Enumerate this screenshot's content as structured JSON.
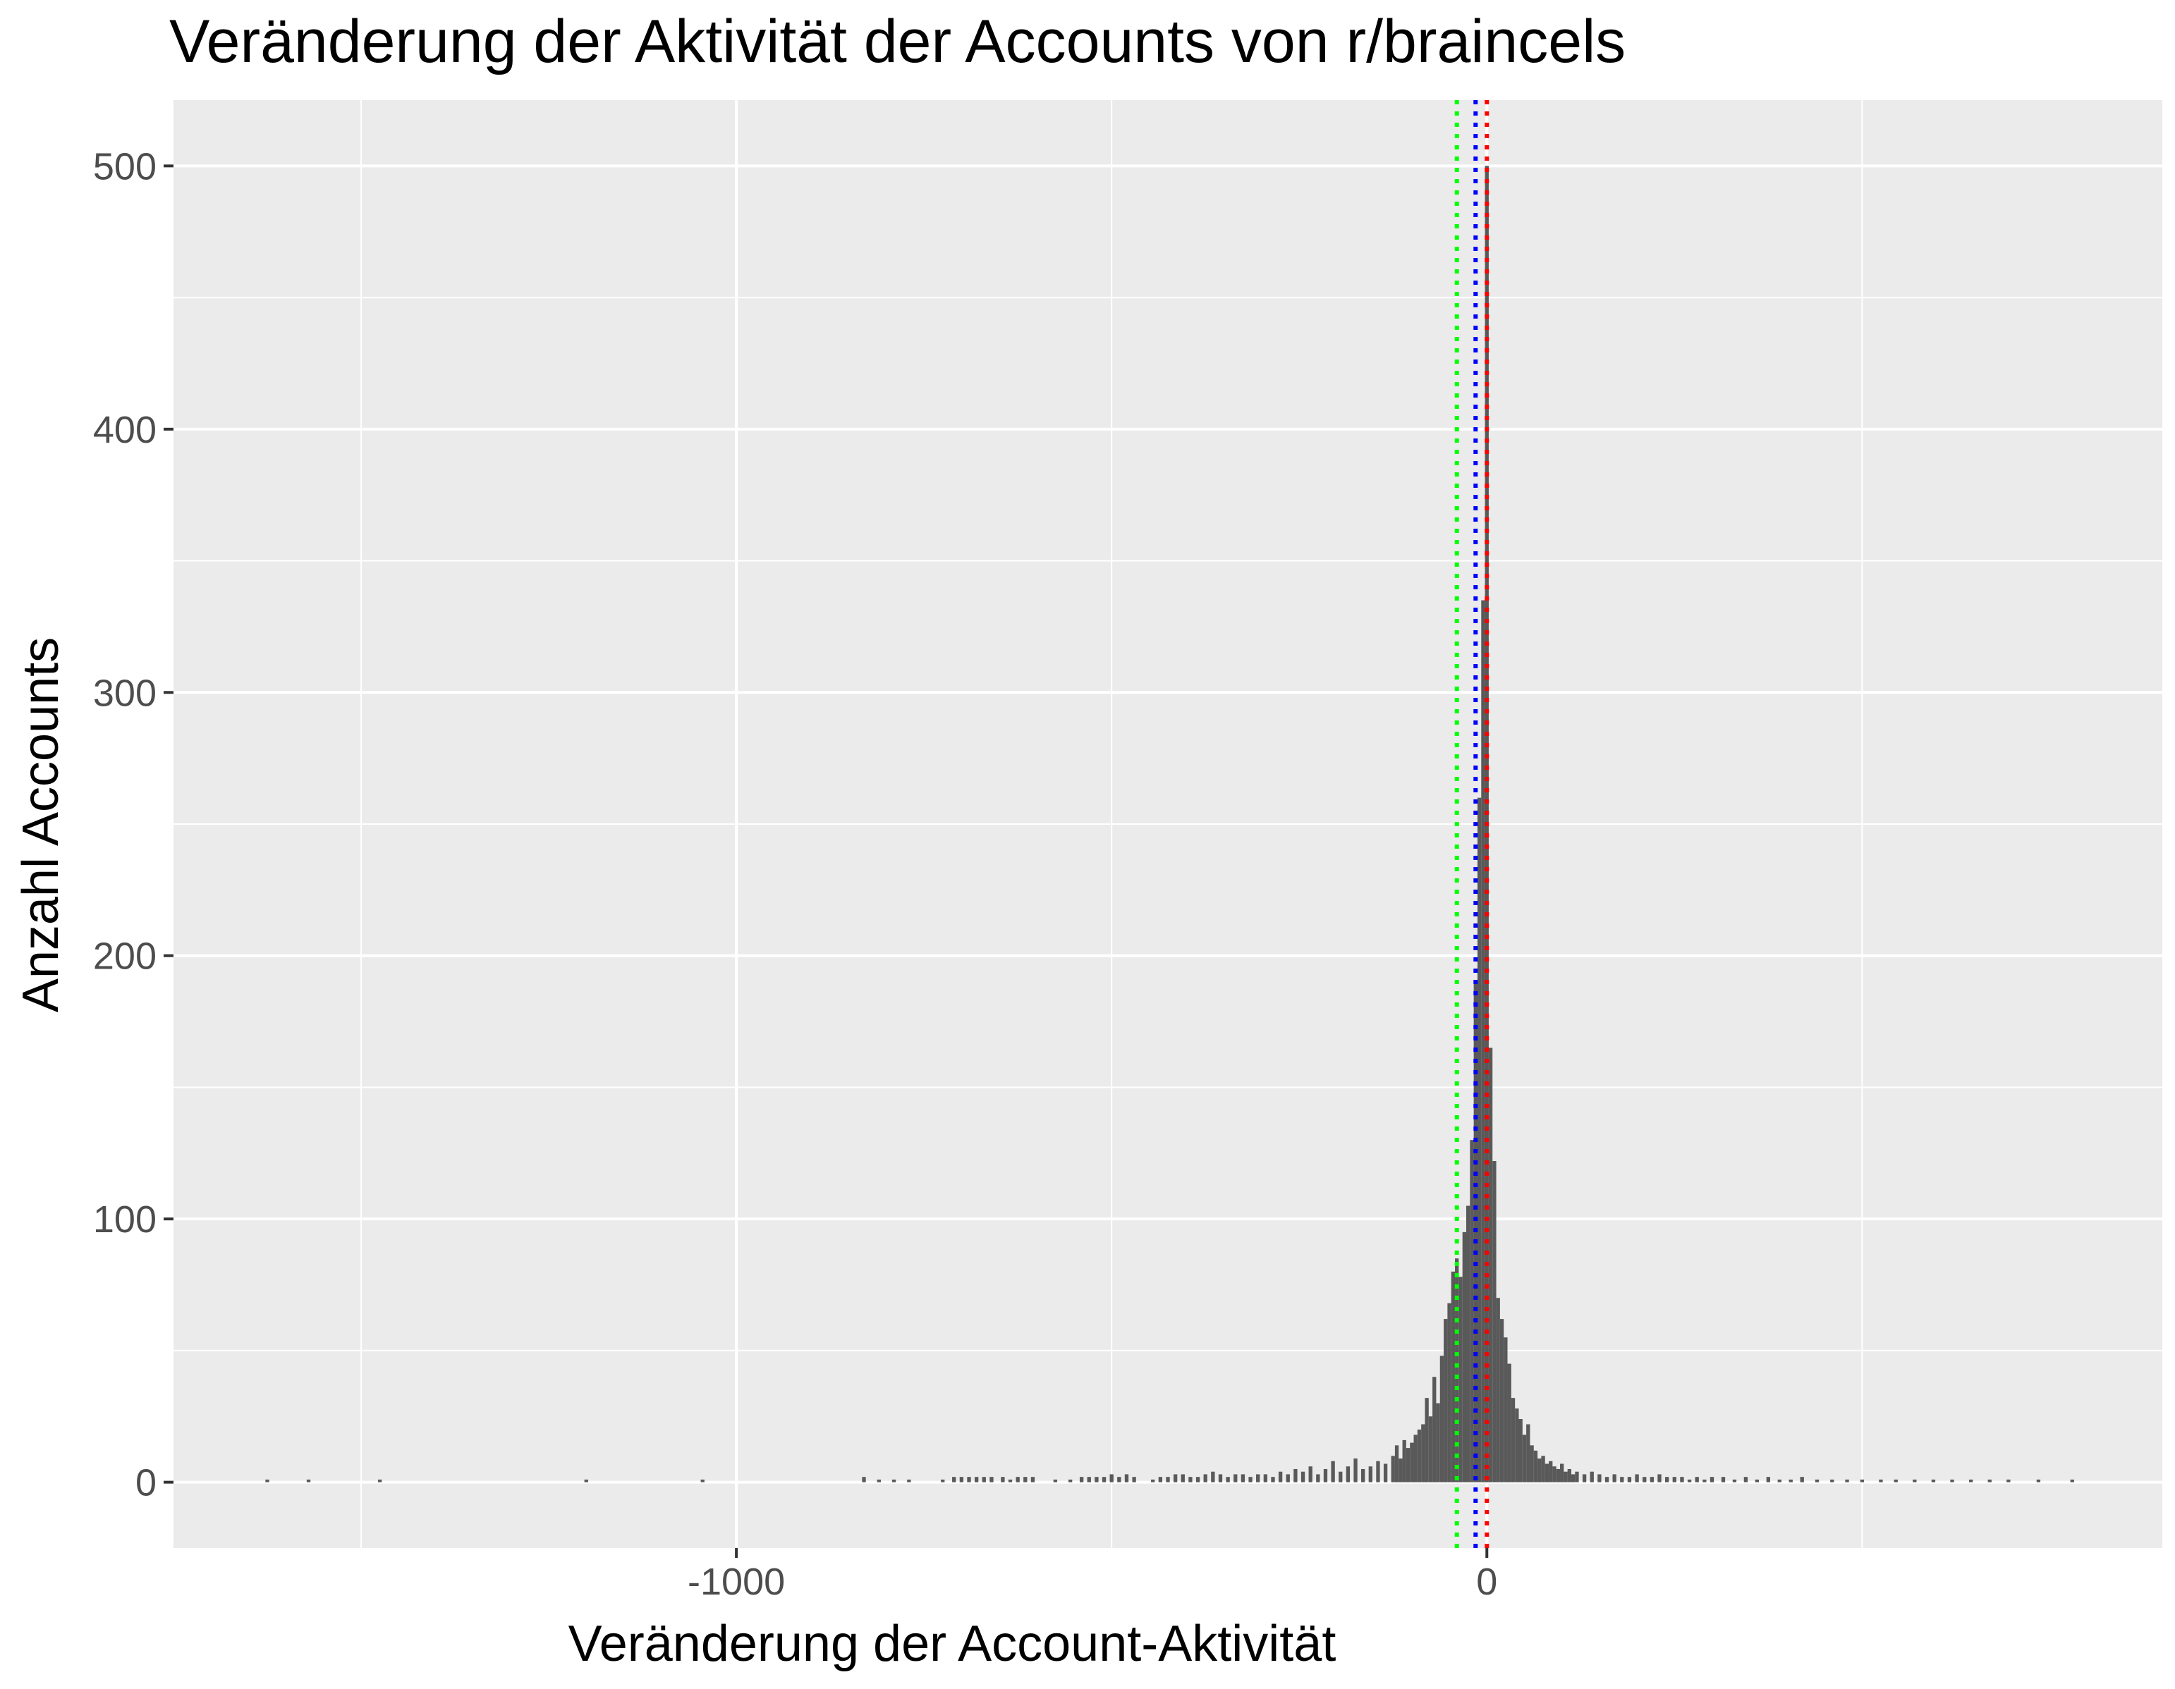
{
  "chart_data": {
    "type": "bar",
    "title": "Veränderung der Aktivität der Accounts von r/braincels",
    "xlabel": "Veränderung der Account-Aktivität",
    "ylabel": "Anzahl Accounts",
    "xlim": [
      -1750,
      900
    ],
    "ylim": [
      -25,
      525
    ],
    "x_ticks": [
      {
        "value": -1000,
        "label": "-1000"
      },
      {
        "value": 0,
        "label": "0"
      }
    ],
    "x_minor_gridlines": [
      -1500,
      -500,
      500
    ],
    "y_ticks": [
      {
        "value": 0,
        "label": "0"
      },
      {
        "value": 100,
        "label": "100"
      },
      {
        "value": 200,
        "label": "200"
      },
      {
        "value": 300,
        "label": "300"
      },
      {
        "value": 400,
        "label": "400"
      },
      {
        "value": 500,
        "label": "500"
      }
    ],
    "y_minor_gridlines": [
      50,
      150,
      250,
      350,
      450
    ],
    "grid": true,
    "legend": "none",
    "bar_color": "#595959",
    "panel_background": "#ebebeb",
    "binwidth": 5,
    "bins": [
      {
        "x": -1625,
        "count": 1
      },
      {
        "x": -1570,
        "count": 1
      },
      {
        "x": -1475,
        "count": 1
      },
      {
        "x": -1200,
        "count": 1
      },
      {
        "x": -1045,
        "count": 1
      },
      {
        "x": -830,
        "count": 2
      },
      {
        "x": -810,
        "count": 1
      },
      {
        "x": -790,
        "count": 1
      },
      {
        "x": -770,
        "count": 1
      },
      {
        "x": -725,
        "count": 1
      },
      {
        "x": -710,
        "count": 2
      },
      {
        "x": -700,
        "count": 2
      },
      {
        "x": -690,
        "count": 2
      },
      {
        "x": -680,
        "count": 2
      },
      {
        "x": -670,
        "count": 2
      },
      {
        "x": -660,
        "count": 2
      },
      {
        "x": -645,
        "count": 2
      },
      {
        "x": -635,
        "count": 1
      },
      {
        "x": -625,
        "count": 2
      },
      {
        "x": -615,
        "count": 2
      },
      {
        "x": -605,
        "count": 2
      },
      {
        "x": -575,
        "count": 1
      },
      {
        "x": -555,
        "count": 1
      },
      {
        "x": -540,
        "count": 2
      },
      {
        "x": -530,
        "count": 2
      },
      {
        "x": -520,
        "count": 2
      },
      {
        "x": -510,
        "count": 2
      },
      {
        "x": -500,
        "count": 3
      },
      {
        "x": -490,
        "count": 2
      },
      {
        "x": -480,
        "count": 3
      },
      {
        "x": -470,
        "count": 2
      },
      {
        "x": -445,
        "count": 1
      },
      {
        "x": -435,
        "count": 2
      },
      {
        "x": -425,
        "count": 2
      },
      {
        "x": -415,
        "count": 3
      },
      {
        "x": -405,
        "count": 3
      },
      {
        "x": -395,
        "count": 2
      },
      {
        "x": -385,
        "count": 2
      },
      {
        "x": -375,
        "count": 3
      },
      {
        "x": -365,
        "count": 4
      },
      {
        "x": -355,
        "count": 3
      },
      {
        "x": -345,
        "count": 2
      },
      {
        "x": -335,
        "count": 3
      },
      {
        "x": -325,
        "count": 3
      },
      {
        "x": -315,
        "count": 2
      },
      {
        "x": -305,
        "count": 3
      },
      {
        "x": -295,
        "count": 3
      },
      {
        "x": -285,
        "count": 2
      },
      {
        "x": -275,
        "count": 4
      },
      {
        "x": -265,
        "count": 3
      },
      {
        "x": -255,
        "count": 5
      },
      {
        "x": -245,
        "count": 4
      },
      {
        "x": -235,
        "count": 6
      },
      {
        "x": -225,
        "count": 3
      },
      {
        "x": -215,
        "count": 5
      },
      {
        "x": -205,
        "count": 8
      },
      {
        "x": -195,
        "count": 4
      },
      {
        "x": -185,
        "count": 6
      },
      {
        "x": -175,
        "count": 9
      },
      {
        "x": -165,
        "count": 5
      },
      {
        "x": -155,
        "count": 6
      },
      {
        "x": -145,
        "count": 8
      },
      {
        "x": -135,
        "count": 7
      },
      {
        "x": -125,
        "count": 10
      },
      {
        "x": -120,
        "count": 14
      },
      {
        "x": -115,
        "count": 9
      },
      {
        "x": -110,
        "count": 16
      },
      {
        "x": -105,
        "count": 13
      },
      {
        "x": -100,
        "count": 15
      },
      {
        "x": -95,
        "count": 18
      },
      {
        "x": -90,
        "count": 20
      },
      {
        "x": -85,
        "count": 22
      },
      {
        "x": -80,
        "count": 32
      },
      {
        "x": -75,
        "count": 25
      },
      {
        "x": -70,
        "count": 40
      },
      {
        "x": -65,
        "count": 30
      },
      {
        "x": -60,
        "count": 48
      },
      {
        "x": -55,
        "count": 62
      },
      {
        "x": -50,
        "count": 68
      },
      {
        "x": -45,
        "count": 80
      },
      {
        "x": -40,
        "count": 85
      },
      {
        "x": -35,
        "count": 78
      },
      {
        "x": -30,
        "count": 95
      },
      {
        "x": -25,
        "count": 105
      },
      {
        "x": -20,
        "count": 130
      },
      {
        "x": -15,
        "count": 190
      },
      {
        "x": -10,
        "count": 260
      },
      {
        "x": -5,
        "count": 335
      },
      {
        "x": 0,
        "count": 500
      },
      {
        "x": 5,
        "count": 165
      },
      {
        "x": 10,
        "count": 122
      },
      {
        "x": 15,
        "count": 70
      },
      {
        "x": 20,
        "count": 62
      },
      {
        "x": 25,
        "count": 55
      },
      {
        "x": 30,
        "count": 45
      },
      {
        "x": 35,
        "count": 32
      },
      {
        "x": 40,
        "count": 28
      },
      {
        "x": 45,
        "count": 24
      },
      {
        "x": 50,
        "count": 18
      },
      {
        "x": 55,
        "count": 22
      },
      {
        "x": 60,
        "count": 14
      },
      {
        "x": 65,
        "count": 12
      },
      {
        "x": 70,
        "count": 9
      },
      {
        "x": 75,
        "count": 10
      },
      {
        "x": 80,
        "count": 7
      },
      {
        "x": 85,
        "count": 8
      },
      {
        "x": 90,
        "count": 6
      },
      {
        "x": 95,
        "count": 5
      },
      {
        "x": 100,
        "count": 7
      },
      {
        "x": 105,
        "count": 4
      },
      {
        "x": 110,
        "count": 5
      },
      {
        "x": 115,
        "count": 3
      },
      {
        "x": 120,
        "count": 4
      },
      {
        "x": 130,
        "count": 3
      },
      {
        "x": 140,
        "count": 4
      },
      {
        "x": 150,
        "count": 3
      },
      {
        "x": 160,
        "count": 2
      },
      {
        "x": 170,
        "count": 3
      },
      {
        "x": 180,
        "count": 2
      },
      {
        "x": 190,
        "count": 2
      },
      {
        "x": 200,
        "count": 3
      },
      {
        "x": 210,
        "count": 2
      },
      {
        "x": 220,
        "count": 2
      },
      {
        "x": 230,
        "count": 3
      },
      {
        "x": 240,
        "count": 2
      },
      {
        "x": 250,
        "count": 2
      },
      {
        "x": 260,
        "count": 2
      },
      {
        "x": 270,
        "count": 1
      },
      {
        "x": 280,
        "count": 2
      },
      {
        "x": 290,
        "count": 1
      },
      {
        "x": 300,
        "count": 2
      },
      {
        "x": 315,
        "count": 2
      },
      {
        "x": 330,
        "count": 1
      },
      {
        "x": 345,
        "count": 2
      },
      {
        "x": 360,
        "count": 1
      },
      {
        "x": 375,
        "count": 2
      },
      {
        "x": 390,
        "count": 1
      },
      {
        "x": 405,
        "count": 1
      },
      {
        "x": 420,
        "count": 2
      },
      {
        "x": 440,
        "count": 1
      },
      {
        "x": 460,
        "count": 1
      },
      {
        "x": 480,
        "count": 1
      },
      {
        "x": 500,
        "count": 1
      },
      {
        "x": 525,
        "count": 1
      },
      {
        "x": 545,
        "count": 1
      },
      {
        "x": 570,
        "count": 1
      },
      {
        "x": 595,
        "count": 1
      },
      {
        "x": 620,
        "count": 1
      },
      {
        "x": 645,
        "count": 1
      },
      {
        "x": 670,
        "count": 1
      },
      {
        "x": 695,
        "count": 1
      },
      {
        "x": 735,
        "count": 1
      },
      {
        "x": 780,
        "count": 1
      }
    ],
    "reference_lines": [
      {
        "x": -40,
        "color": "#00ff00",
        "linetype": "dotted"
      },
      {
        "x": -15,
        "color": "#0000ff",
        "linetype": "dotted"
      },
      {
        "x": 0,
        "color": "#ff0000",
        "linetype": "dotted"
      }
    ]
  }
}
